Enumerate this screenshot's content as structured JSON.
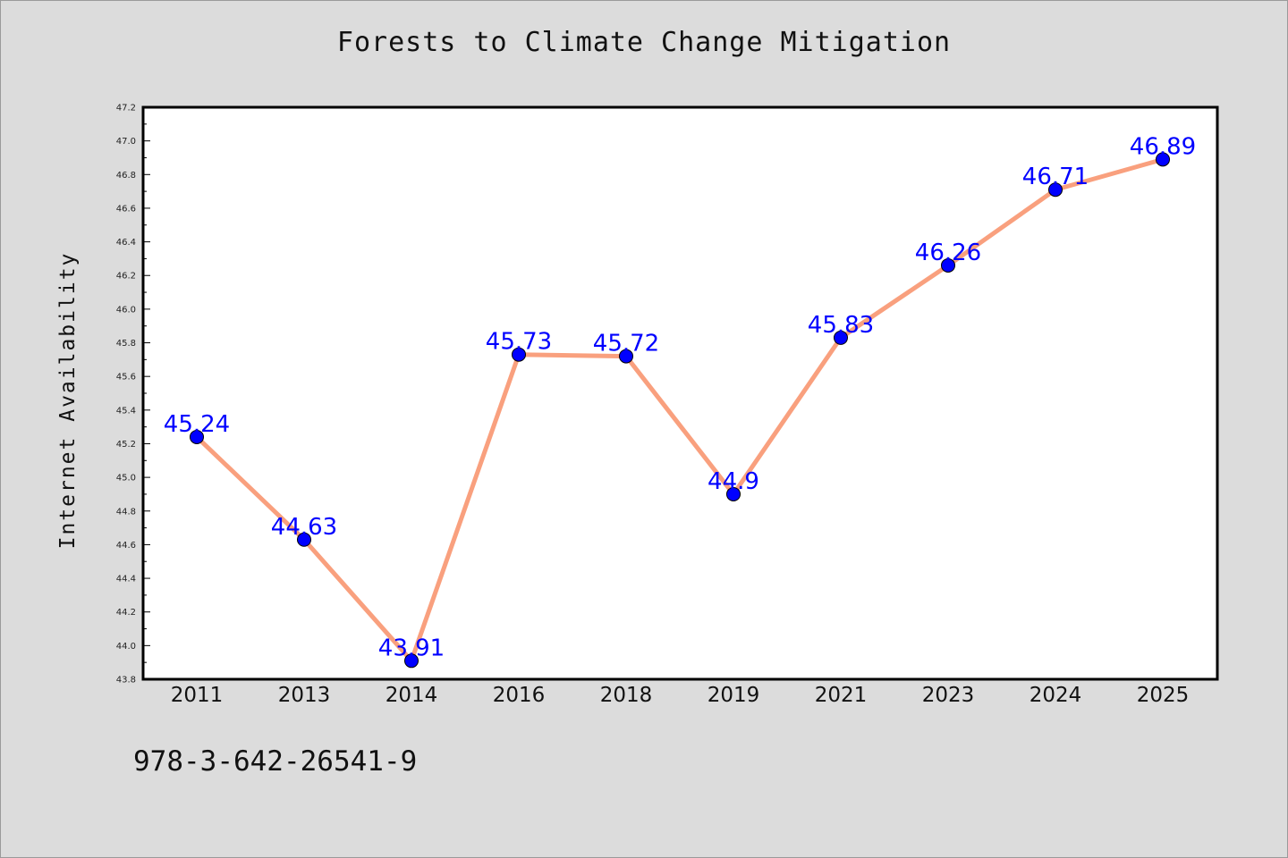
{
  "chart_data": {
    "type": "line",
    "title": "Forests to Climate Change Mitigation",
    "xlabel": "",
    "ylabel": "Internet Availability",
    "categories": [
      "2011",
      "2013",
      "2014",
      "2016",
      "2018",
      "2019",
      "2021",
      "2023",
      "2024",
      "2025"
    ],
    "series": [
      {
        "values": [
          45.24,
          44.63,
          43.91,
          45.73,
          45.72,
          44.9,
          45.83,
          46.26,
          46.71,
          46.89
        ],
        "data_labels": [
          "45.24",
          "44.63",
          "43.91",
          "45.73",
          "45.72",
          "44.9",
          "45.83",
          "46.26",
          "46.71",
          "46.89"
        ],
        "line_color": "#f9a07e",
        "marker_color": "#0000ff"
      }
    ],
    "ylim": [
      43.8,
      47.2
    ],
    "yticks": [
      "43.8",
      "44.0",
      "44.2",
      "44.4",
      "44.6",
      "44.8",
      "45.0",
      "45.2",
      "45.4",
      "45.6",
      "45.8",
      "46.0",
      "46.2",
      "46.4",
      "46.6",
      "46.8",
      "47.0",
      "47.2"
    ],
    "grid": false,
    "legend": "none",
    "label_color": "#0000ff"
  },
  "footer": {
    "isbn": "978-3-642-26541-9"
  }
}
